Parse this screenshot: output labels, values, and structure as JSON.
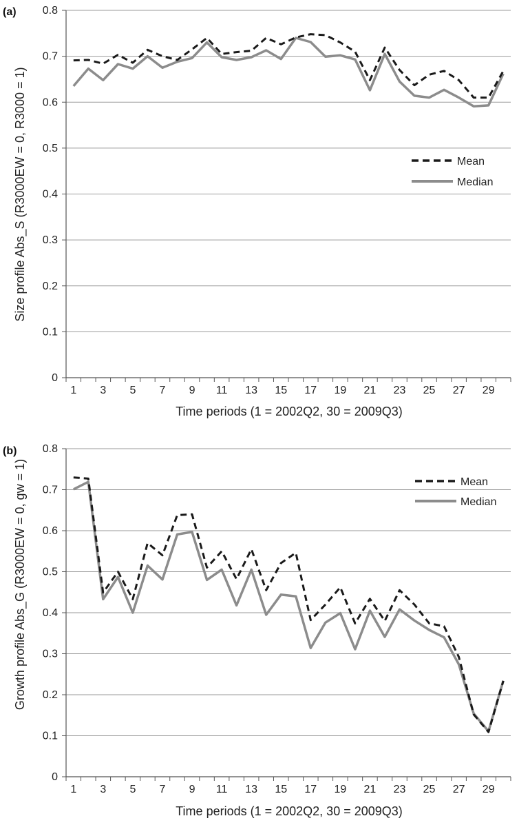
{
  "chart_data": [
    {
      "type": "line",
      "panel_label": "(a)",
      "xlabel": "Time periods (1 = 2002Q2, 30 = 2009Q3)",
      "ylabel": "Size profile Abs_S (R3000EW = 0, R3000 = 1)",
      "ylim": [
        0,
        0.8
      ],
      "yticks": [
        "0",
        "0.1",
        "0.2",
        "0.3",
        "0.4",
        "0.5",
        "0.6",
        "0.7",
        "0.8"
      ],
      "x": [
        1,
        2,
        3,
        4,
        5,
        6,
        7,
        8,
        9,
        10,
        11,
        12,
        13,
        14,
        15,
        16,
        17,
        18,
        19,
        20,
        21,
        22,
        23,
        24,
        25,
        26,
        27,
        28,
        29,
        30
      ],
      "xticks": [
        "1",
        "3",
        "5",
        "7",
        "9",
        "11",
        "13",
        "15",
        "17",
        "19",
        "21",
        "23",
        "25",
        "27",
        "29"
      ],
      "grid": true,
      "legend_position": "right",
      "series": [
        {
          "name": "Mean",
          "style": "dashed",
          "color": "#1a1a1a",
          "values": [
            0.691,
            0.692,
            0.684,
            0.703,
            0.686,
            0.714,
            0.7,
            0.692,
            0.715,
            0.74,
            0.705,
            0.709,
            0.712,
            0.74,
            0.726,
            0.741,
            0.748,
            0.746,
            0.73,
            0.71,
            0.648,
            0.719,
            0.67,
            0.637,
            0.66,
            0.668,
            0.648,
            0.61,
            0.61,
            0.668
          ]
        },
        {
          "name": "Median",
          "style": "solid",
          "color": "#8c8c8c",
          "values": [
            0.635,
            0.673,
            0.648,
            0.683,
            0.673,
            0.7,
            0.675,
            0.688,
            0.696,
            0.73,
            0.698,
            0.692,
            0.698,
            0.713,
            0.694,
            0.74,
            0.731,
            0.699,
            0.702,
            0.693,
            0.626,
            0.705,
            0.645,
            0.614,
            0.61,
            0.627,
            0.61,
            0.591,
            0.593,
            0.662
          ]
        }
      ]
    },
    {
      "type": "line",
      "panel_label": "(b)",
      "xlabel": "Time periods (1 = 2002Q2, 30 = 2009Q3)",
      "ylabel": "Growth profile Abs_G (R3000EW = 0, gw = 1)",
      "ylim": [
        0,
        0.8
      ],
      "yticks": [
        "0",
        "0.1",
        "0.2",
        "0.3",
        "0.4",
        "0.5",
        "0.6",
        "0.7",
        "0.8"
      ],
      "x": [
        1,
        2,
        3,
        4,
        5,
        6,
        7,
        8,
        9,
        10,
        11,
        12,
        13,
        14,
        15,
        16,
        17,
        18,
        19,
        20,
        21,
        22,
        23,
        24,
        25,
        26,
        27,
        28,
        29,
        30
      ],
      "xticks": [
        "1",
        "3",
        "5",
        "7",
        "9",
        "11",
        "13",
        "15",
        "17",
        "19",
        "21",
        "23",
        "25",
        "27",
        "29"
      ],
      "grid": true,
      "legend_position": "top-right",
      "series": [
        {
          "name": "Mean",
          "style": "dashed",
          "color": "#1a1a1a",
          "values": [
            0.73,
            0.727,
            0.449,
            0.5,
            0.433,
            0.57,
            0.54,
            0.638,
            0.64,
            0.51,
            0.55,
            0.482,
            0.555,
            0.455,
            0.521,
            0.546,
            0.382,
            0.42,
            0.462,
            0.374,
            0.434,
            0.38,
            0.455,
            0.42,
            0.374,
            0.367,
            0.292,
            0.152,
            0.109,
            0.234
          ]
        },
        {
          "name": "Median",
          "style": "solid",
          "color": "#8c8c8c",
          "values": [
            0.701,
            0.719,
            0.433,
            0.487,
            0.4,
            0.515,
            0.481,
            0.591,
            0.597,
            0.48,
            0.505,
            0.418,
            0.505,
            0.395,
            0.444,
            0.44,
            0.314,
            0.376,
            0.399,
            0.311,
            0.405,
            0.341,
            0.408,
            0.381,
            0.358,
            0.34,
            0.274,
            0.154,
            0.111,
            0.234
          ]
        }
      ]
    }
  ]
}
